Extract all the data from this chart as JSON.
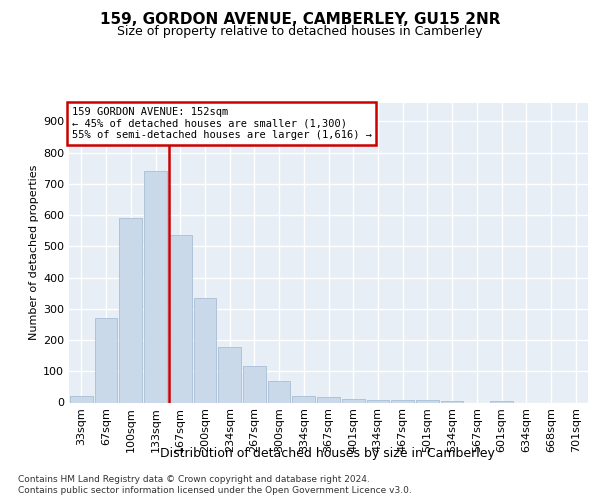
{
  "title1": "159, GORDON AVENUE, CAMBERLEY, GU15 2NR",
  "title2": "Size of property relative to detached houses in Camberley",
  "xlabel": "Distribution of detached houses by size in Camberley",
  "ylabel": "Number of detached properties",
  "categories": [
    "33sqm",
    "67sqm",
    "100sqm",
    "133sqm",
    "167sqm",
    "200sqm",
    "234sqm",
    "267sqm",
    "300sqm",
    "334sqm",
    "367sqm",
    "401sqm",
    "434sqm",
    "467sqm",
    "501sqm",
    "534sqm",
    "567sqm",
    "601sqm",
    "634sqm",
    "668sqm",
    "701sqm"
  ],
  "values": [
    20,
    270,
    590,
    740,
    535,
    335,
    178,
    118,
    70,
    22,
    18,
    12,
    8,
    8,
    8,
    6,
    0,
    6,
    0,
    0,
    0
  ],
  "bar_color": "#c9d9ea",
  "bar_edge_color": "#a8bfd4",
  "annotation_line1": "159 GORDON AVENUE: 152sqm",
  "annotation_line2": "← 45% of detached houses are smaller (1,300)",
  "annotation_line3": "55% of semi-detached houses are larger (1,616) →",
  "ylim": [
    0,
    960
  ],
  "yticks": [
    0,
    100,
    200,
    300,
    400,
    500,
    600,
    700,
    800,
    900
  ],
  "footnote1": "Contains HM Land Registry data © Crown copyright and database right 2024.",
  "footnote2": "Contains public sector information licensed under the Open Government Licence v3.0.",
  "fig_bg_color": "#ffffff",
  "plot_bg_color": "#e8eef5",
  "grid_color": "#ffffff",
  "red_line_color": "#cc0000",
  "annotation_box_edge": "#cc0000",
  "annotation_box_face": "#ffffff",
  "title1_fontsize": 11,
  "title2_fontsize": 9,
  "ylabel_fontsize": 8,
  "xlabel_fontsize": 9,
  "tick_fontsize": 8,
  "annot_fontsize": 7.5,
  "footnote_fontsize": 6.5
}
